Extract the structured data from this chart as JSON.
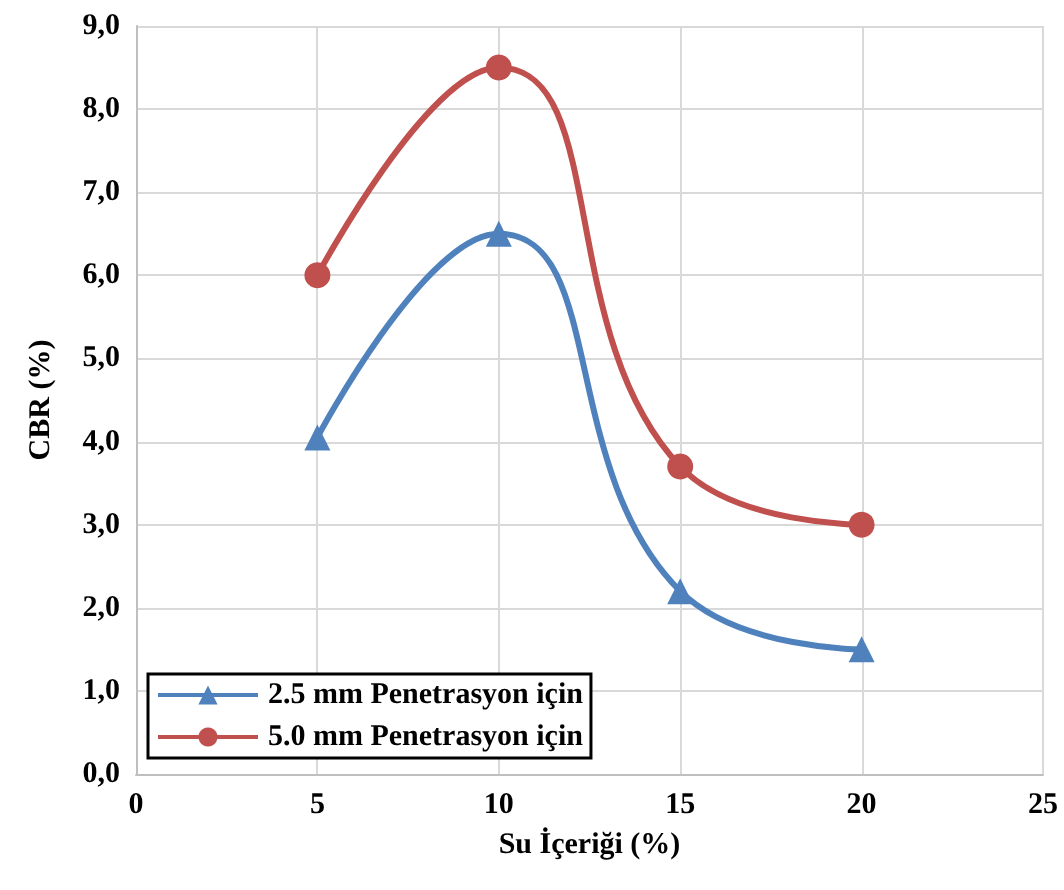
{
  "chart_data": {
    "type": "line",
    "xlabel": "Su İçeriği (%)",
    "ylabel": "CBR (%)",
    "x": [
      5,
      10,
      15,
      20
    ],
    "series": [
      {
        "name": "2.5 mm Penetrasyon için",
        "color": "#4f81bd",
        "marker": "triangle",
        "values": [
          4.05,
          6.5,
          2.2,
          1.5
        ]
      },
      {
        "name": "5.0 mm Penetrasyon için",
        "color": "#c0504d",
        "marker": "circle",
        "values": [
          6.0,
          8.5,
          3.7,
          3.0
        ]
      }
    ],
    "xlim": [
      0,
      25
    ],
    "xticks": [
      0,
      5,
      10,
      15,
      20,
      25
    ],
    "ylim": [
      0,
      9
    ],
    "yticks": [
      {
        "value": 0,
        "label": "0,0"
      },
      {
        "value": 1,
        "label": "1,0"
      },
      {
        "value": 2,
        "label": "2,0"
      },
      {
        "value": 3,
        "label": "3,0"
      },
      {
        "value": 4,
        "label": "4,0"
      },
      {
        "value": 5,
        "label": "5,0"
      },
      {
        "value": 6,
        "label": "6,0"
      },
      {
        "value": 7,
        "label": "7,0"
      },
      {
        "value": 8,
        "label": "8,0"
      },
      {
        "value": 9,
        "label": "9,0"
      }
    ],
    "grid": true,
    "legend": "bottom left",
    "line_style": "solid"
  }
}
